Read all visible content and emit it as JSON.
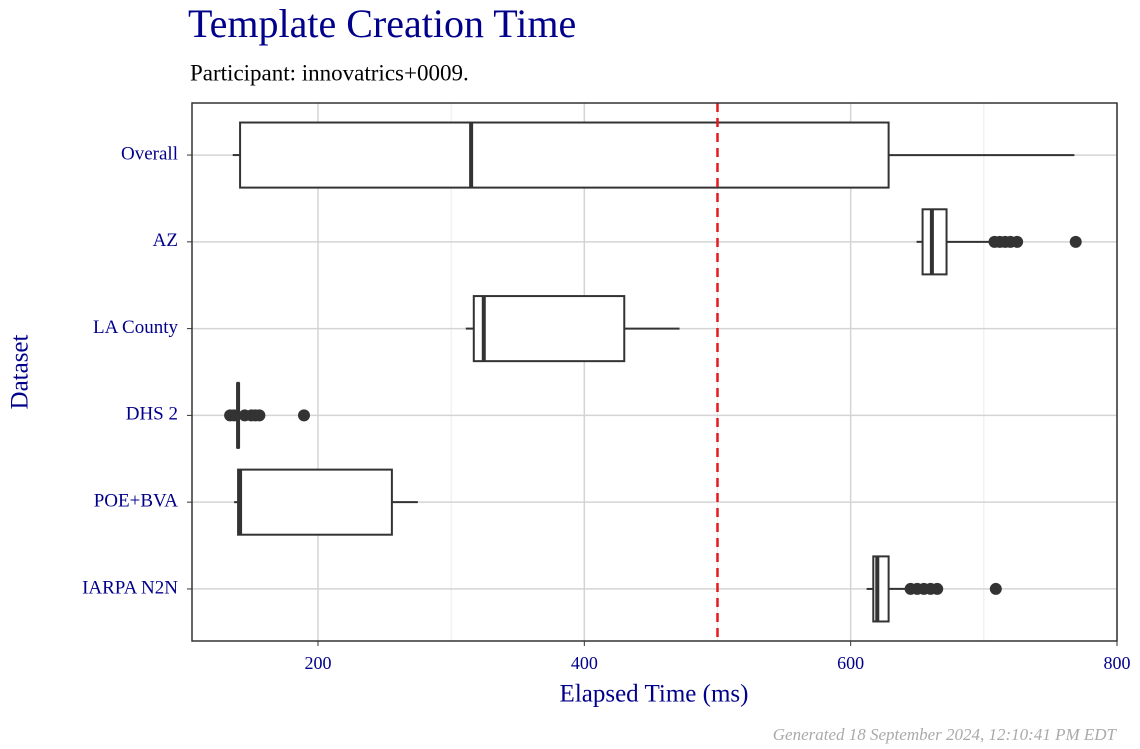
{
  "chart_data": {
    "type": "boxplot",
    "title": "Template Creation Time",
    "subtitle": "Participant: innovatrics+0009.",
    "x_label": "Elapsed Time (ms)",
    "y_label": "Dataset",
    "footer": "Generated 18 September 2024, 12:10:41 PM EDT",
    "categories": [
      "Overall",
      "AZ",
      "LA County",
      "DHS 2",
      "POE+BVA",
      "IARPA N2N"
    ],
    "boxes": [
      {
        "whisker_low": 136,
        "q1": 141.5,
        "median": 315,
        "q3": 628.5,
        "whisker_high": 768,
        "outliers": []
      },
      {
        "whisker_low": 649.5,
        "q1": 654,
        "median": 661,
        "q3": 672,
        "whisker_high": 706,
        "outliers": [
          708,
          712,
          716,
          720,
          725,
          769
        ]
      },
      {
        "whisker_low": 311,
        "q1": 317,
        "median": 324.5,
        "q3": 430,
        "whisker_high": 471.5,
        "outliers": []
      },
      {
        "whisker_low": 139,
        "q1": 139.5,
        "median": 140,
        "q3": 140.5,
        "whisker_high": 141,
        "outliers": [
          134,
          137,
          145,
          150,
          153,
          156,
          189.5
        ]
      },
      {
        "whisker_low": 137,
        "q1": 140,
        "median": 141.5,
        "q3": 255.5,
        "whisker_high": 275,
        "outliers": []
      },
      {
        "whisker_low": 612,
        "q1": 617,
        "median": 620,
        "q3": 628.5,
        "whisker_high": 642,
        "outliers": [
          645,
          650,
          655,
          660,
          665,
          709
        ]
      }
    ],
    "box_color": "#333333",
    "reference_line": {
      "value": 500,
      "color": "#e41a1c",
      "dashed": true
    },
    "xlim": [
      105.4,
      800
    ],
    "xticks": [
      200,
      400,
      600,
      800
    ],
    "xminorticks": [
      300,
      500,
      700
    ],
    "grid": true,
    "text_color": "#00008b"
  }
}
